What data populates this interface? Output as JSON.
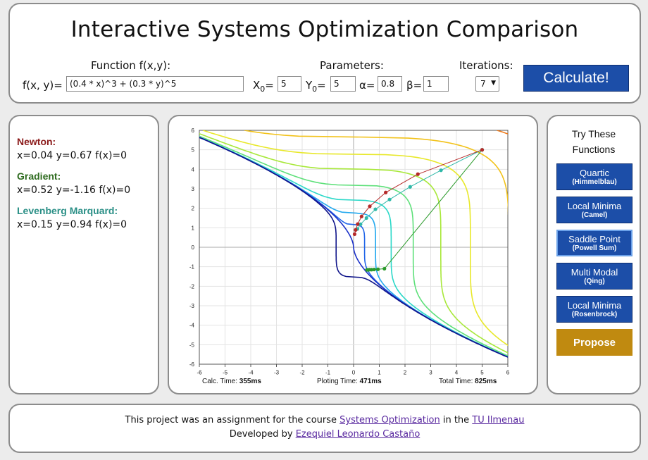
{
  "header": {
    "title": "Interactive Systems Optimization Comparison",
    "function_label": "Function f(x,y):",
    "fx_prefix": "f(x, y)=",
    "fx_value": "(0.4 * x)^3 + (0.3 * y)^5",
    "parameters_label": "Parameters:",
    "params": {
      "x0_label": "X",
      "x0_sub": "0",
      "x0_value": "5",
      "y0_label": "Y",
      "y0_sub": "0",
      "y0_value": "5",
      "alpha_label": "α=",
      "alpha_value": "0.8",
      "beta_label": "β=",
      "beta_value": "1"
    },
    "iterations_label": "Iterations:",
    "iterations_value": "7",
    "iterations_arrow": "▼",
    "calculate_label": "Calculate!"
  },
  "results": {
    "newton": {
      "name": "Newton:",
      "value": "x=0.04 y=0.67 f(x)=0",
      "color": "#8b1a1a"
    },
    "gradient": {
      "name": "Gradient:",
      "value": "x=0.52 y=-1.16 f(x)=0",
      "color": "#2e6b1f"
    },
    "lm": {
      "name": "Levenberg Marquard:",
      "value": "x=0.15 y=0.94 f(x)=0",
      "color": "#2a8f86"
    }
  },
  "plot": {
    "xticks": [
      "-6",
      "-5",
      "-4",
      "-3",
      "-2",
      "-1",
      "0",
      "1",
      "2",
      "3",
      "4",
      "5",
      "6"
    ],
    "yticks": [
      "6",
      "5",
      "4",
      "3",
      "2",
      "1",
      "0",
      "-1",
      "-2",
      "-3",
      "-4",
      "-5",
      "-6"
    ],
    "xlim": [
      -6,
      6
    ],
    "ylim": [
      -6,
      6
    ],
    "calc_label": "Calc. Time: ",
    "calc_value": "355ms",
    "plot_label": "Ploting Time: ",
    "plot_value": "471ms",
    "total_label": "Total Time: ",
    "total_value": "825ms",
    "contour_colors": [
      "#dd2b1a",
      "#ee7a1a",
      "#f2c21a",
      "#e8e82a",
      "#a8e83a",
      "#5ee07a",
      "#2ad8c8",
      "#22a8ee",
      "#2266e8",
      "#1a30c8",
      "#10158a"
    ],
    "contour_levels": [
      62,
      30,
      14,
      6,
      2.5,
      0.8,
      0.2,
      0.04,
      0.005,
      0,
      -0.02
    ],
    "newton_path": [
      [
        5,
        5
      ],
      [
        2.5,
        3.75
      ],
      [
        1.25,
        2.81
      ],
      [
        0.63,
        2.1
      ],
      [
        0.31,
        1.58
      ],
      [
        0.16,
        1.19
      ],
      [
        0.08,
        0.89
      ],
      [
        0.04,
        0.67
      ]
    ],
    "gradient_path": [
      [
        5,
        5
      ],
      [
        1.2,
        -1.1
      ],
      [
        0.95,
        -1.13
      ],
      [
        0.8,
        -1.14
      ],
      [
        0.7,
        -1.15
      ],
      [
        0.62,
        -1.15
      ],
      [
        0.56,
        -1.16
      ],
      [
        0.52,
        -1.16
      ]
    ],
    "lm_path": [
      [
        5,
        5
      ],
      [
        3.4,
        3.95
      ],
      [
        2.2,
        3.1
      ],
      [
        1.4,
        2.45
      ],
      [
        0.85,
        1.95
      ],
      [
        0.5,
        1.5
      ],
      [
        0.27,
        1.18
      ],
      [
        0.15,
        0.94
      ]
    ],
    "newton_color": "#b52a2a",
    "gradient_color": "#2a9a2a",
    "lm_color": "#2fb8a8"
  },
  "examples": {
    "title_line1": "Try These",
    "title_line2": "Functions",
    "buttons": [
      {
        "main": "Quartic",
        "sub": "(Himmelblau)"
      },
      {
        "main": "Local Minima",
        "sub": "(Camel)"
      },
      {
        "main": "Saddle Point",
        "sub": "(Powell Sum)"
      },
      {
        "main": "Multi Modal",
        "sub": "(Qing)"
      },
      {
        "main": "Local Minima",
        "sub": "(Rosenbrock)"
      }
    ],
    "propose_label": "Propose"
  },
  "footer": {
    "line1_pre": "This project was an assignment for the course ",
    "line1_link1": "Systems Optimization",
    "line1_mid": " in the ",
    "line1_link2": "TU Ilmenau",
    "line2_pre": "Developed by ",
    "line2_link": "Ezequiel Leonardo Castaño"
  }
}
